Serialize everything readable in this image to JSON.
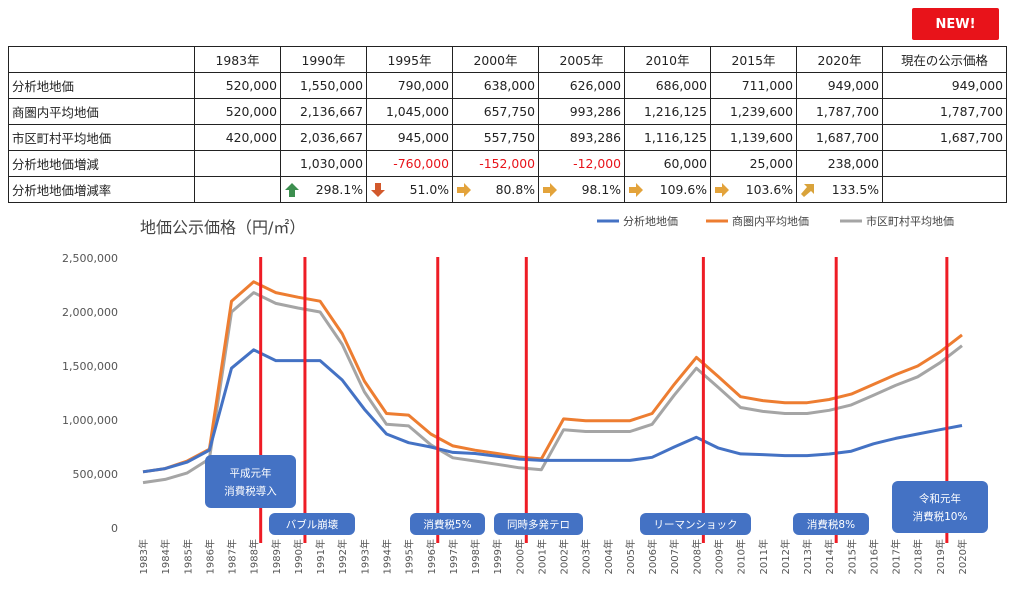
{
  "badge": "NEW!",
  "table": {
    "header": [
      "",
      "1983年",
      "1990年",
      "1995年",
      "2000年",
      "2005年",
      "2010年",
      "2015年",
      "2020年",
      "現在の公示価格"
    ],
    "rows": [
      {
        "label": "分析地地価",
        "cells": [
          "520,000",
          "1,550,000",
          "790,000",
          "638,000",
          "626,000",
          "686,000",
          "711,000",
          "949,000",
          "949,000"
        ]
      },
      {
        "label": "商圏内平均地価",
        "cells": [
          "520,000",
          "2,136,667",
          "1,045,000",
          "657,750",
          "993,286",
          "1,216,125",
          "1,239,600",
          "1,787,700",
          "1,787,700"
        ]
      },
      {
        "label": "市区町村平均地価",
        "cells": [
          "420,000",
          "2,036,667",
          "945,000",
          "557,750",
          "893,286",
          "1,116,125",
          "1,139,600",
          "1,687,700",
          "1,687,700"
        ]
      },
      {
        "label": "分析地地価増減",
        "cells": [
          "",
          "1,030,000",
          "-760,000",
          "-152,000",
          "-12,000",
          "60,000",
          "25,000",
          "238,000",
          ""
        ]
      }
    ],
    "rate_row": {
      "label": "分析地地価増減率",
      "cells": [
        "",
        "298.1%",
        "51.0%",
        "80.8%",
        "98.1%",
        "109.6%",
        "103.6%",
        "133.5%",
        ""
      ],
      "icons": [
        "",
        "arrow-up-icon",
        "arrow-down-icon",
        "arrow-right-icon",
        "arrow-right-icon",
        "arrow-right-icon",
        "arrow-right-icon",
        "arrow-up-right-icon",
        ""
      ]
    },
    "colors": {
      "negative": "#e8131a",
      "up": "#3d8f4f",
      "down": "#d2592c",
      "flat": "#e3a33b",
      "upright": "#d9a33b"
    }
  },
  "chart_data": {
    "type": "line",
    "title": "地価公示価格（円/㎡）",
    "x": [
      "1983年",
      "1984年",
      "1985年",
      "1986年",
      "1987年",
      "1988年",
      "1989年",
      "1990年",
      "1991年",
      "1992年",
      "1993年",
      "1994年",
      "1995年",
      "1996年",
      "1997年",
      "1998年",
      "1999年",
      "2000年",
      "2001年",
      "2002年",
      "2003年",
      "2004年",
      "2005年",
      "2006年",
      "2007年",
      "2008年",
      "2009年",
      "2010年",
      "2011年",
      "2012年",
      "2013年",
      "2014年",
      "2015年",
      "2016年",
      "2017年",
      "2018年",
      "2019年",
      "2020年"
    ],
    "ylim": [
      0,
      2500000
    ],
    "yticks": [
      "0",
      "500,000",
      "1,000,000",
      "1,500,000",
      "2,000,000",
      "2,500,000"
    ],
    "legend_position": "top-right",
    "series": [
      {
        "name": "分析地地価",
        "color": "#4472c4",
        "values": [
          520000,
          550000,
          610000,
          720000,
          1480000,
          1650000,
          1550000,
          1550000,
          1550000,
          1370000,
          1100000,
          870000,
          790000,
          750000,
          700000,
          690000,
          665000,
          638000,
          626000,
          626000,
          626000,
          626000,
          626000,
          655000,
          750000,
          840000,
          740000,
          686000,
          680000,
          670000,
          670000,
          685000,
          711000,
          780000,
          830000,
          870000,
          910000,
          949000
        ]
      },
      {
        "name": "商圏内平均地価",
        "color": "#ed7d31",
        "values": [
          520000,
          550000,
          620000,
          730000,
          2100000,
          2280000,
          2180000,
          2136667,
          2100000,
          1800000,
          1360000,
          1060000,
          1045000,
          870000,
          760000,
          720000,
          690000,
          657750,
          640000,
          1010000,
          993286,
          993286,
          993286,
          1060000,
          1330000,
          1580000,
          1400000,
          1216125,
          1180000,
          1160000,
          1160000,
          1190000,
          1239600,
          1330000,
          1420000,
          1500000,
          1630000,
          1787700
        ]
      },
      {
        "name": "市区町村平均地価",
        "color": "#a5a5a5",
        "values": [
          420000,
          450000,
          510000,
          640000,
          2000000,
          2180000,
          2080000,
          2036667,
          2000000,
          1700000,
          1260000,
          960000,
          945000,
          770000,
          650000,
          620000,
          590000,
          557750,
          540000,
          910000,
          893286,
          893286,
          893286,
          960000,
          1230000,
          1480000,
          1300000,
          1116125,
          1080000,
          1060000,
          1060000,
          1090000,
          1139600,
          1230000,
          1320000,
          1400000,
          1530000,
          1687700
        ]
      }
    ],
    "events": [
      {
        "year": "1988年",
        "label_lines": [
          "平成元年",
          "消費税導入"
        ]
      },
      {
        "year": "1990年",
        "label_lines": [
          "バブル崩壊"
        ]
      },
      {
        "year": "1996年",
        "label_lines": [
          "消費税5%"
        ]
      },
      {
        "year": "2000年",
        "label_lines": [
          "同時多発テロ"
        ]
      },
      {
        "year": "2008年",
        "label_lines": [
          "リーマンショック"
        ]
      },
      {
        "year": "2014年",
        "label_lines": [
          "消費税8%"
        ]
      },
      {
        "year": "2019年",
        "label_lines": [
          "令和元年",
          "消費税10%"
        ]
      }
    ],
    "event_line_color": "#ee1c25",
    "event_box_color": "#4472c4"
  }
}
